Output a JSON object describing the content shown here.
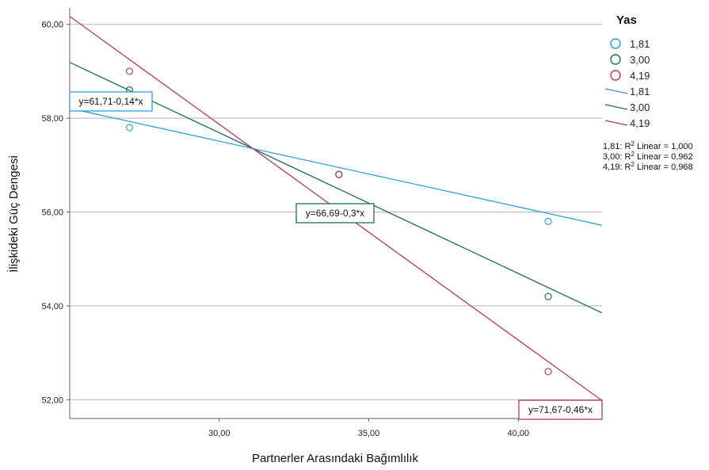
{
  "chart_data": {
    "type": "scatter",
    "xlabel": "Partnerler Arasındaki Bağımlılık",
    "ylabel": "İlişkideki Güç Dengesi",
    "xlim": [
      25.0,
      42.8
    ],
    "ylim": [
      51.6,
      60.35
    ],
    "x_ticks": [
      "30,00",
      "35,00",
      "40,00"
    ],
    "x_tick_values": [
      30,
      35,
      40
    ],
    "y_ticks": [
      "52,00",
      "54,00",
      "56,00",
      "58,00",
      "60,00"
    ],
    "y_tick_values": [
      52,
      54,
      56,
      58,
      60
    ],
    "grid": "horizontal",
    "legend": {
      "title": "Yas",
      "position": "right",
      "marker_labels": [
        "1,81",
        "3,00",
        "4,19"
      ],
      "line_labels": [
        "1,81",
        "3,00",
        "4,19"
      ],
      "r2_prefix": [
        "1,81: R",
        "3,00: R",
        "4,19: R"
      ],
      "r2_sup": [
        "2",
        "2",
        "2"
      ],
      "r2_suffix": [
        " Linear = 1,000",
        " Linear = 0,962",
        " Linear = 0,968"
      ]
    },
    "series": [
      {
        "name": "1,81",
        "color": "#2b9fd9",
        "points": [
          [
            27,
            57.8
          ],
          [
            34,
            56.8
          ],
          [
            41,
            55.8
          ]
        ],
        "fit": {
          "intercept": 61.71,
          "slope": -0.14
        },
        "equation": "y=61,71-0,14*x"
      },
      {
        "name": "3,00",
        "color": "#1f6e5c",
        "points": [
          [
            27,
            58.6
          ],
          [
            34,
            56.8
          ],
          [
            41,
            54.2
          ]
        ],
        "fit": {
          "intercept": 66.69,
          "slope": -0.3
        },
        "equation": "y=66,69-0,3*x"
      },
      {
        "name": "4,19",
        "color": "#b83764",
        "points": [
          [
            27,
            59.0
          ],
          [
            34,
            56.8
          ],
          [
            41,
            52.6
          ]
        ],
        "fit": {
          "intercept": 71.67,
          "slope": -0.46
        },
        "equation": "y=71,67-0,46*x"
      }
    ]
  }
}
